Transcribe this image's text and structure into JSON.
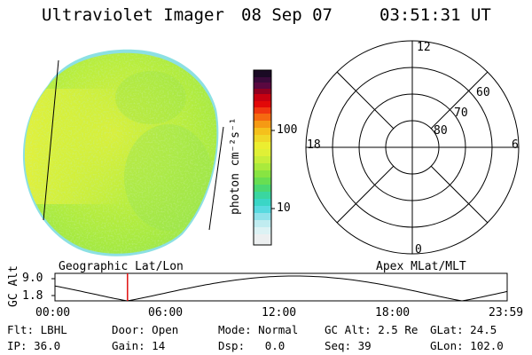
{
  "header": {
    "instrument": "Ultraviolet Imager",
    "date": "08 Sep 07",
    "time": "03:51:31 UT"
  },
  "colorbar": {
    "label": "photon cm⁻²s⁻¹",
    "ticks": [
      {
        "label": "100",
        "value": 100
      },
      {
        "label": "10",
        "value": 10
      }
    ],
    "scale": "log"
  },
  "polar_plot": {
    "clock_labels": [
      "12",
      "18",
      "6",
      "0"
    ],
    "lat_labels": [
      "60",
      "70",
      "80"
    ]
  },
  "timeline": {
    "left_label": "Geographic Lat/Lon",
    "right_label": "Apex MLat/MLT",
    "y_axis_label": "GC Alt",
    "y_ticks": [
      "9.0",
      "1.8"
    ],
    "x_ticks": [
      "00:00",
      "06:00",
      "12:00",
      "18:00",
      "23:59"
    ],
    "marker_time": "03:51"
  },
  "info": {
    "row1": {
      "flt_label": "Flt:",
      "flt_value": "LBHL",
      "door_label": "Door:",
      "door_value": "Open",
      "mode_label": "Mode:",
      "mode_value": "Normal",
      "gcalt_label": "GC Alt:",
      "gcalt_value": "2.5 Re",
      "glat_label": "GLat:",
      "glat_value": "24.5"
    },
    "row2": {
      "ip_label": "IP:",
      "ip_value": "36.0",
      "gain_label": "Gain:",
      "gain_value": "14",
      "dsp_label": "Dsp:",
      "dsp_value": "0.0",
      "seq_label": "Seq:",
      "seq_value": "39",
      "glon_label": "GLon:",
      "glon_value": "102.0"
    }
  },
  "colors": {
    "disk_main": "#b8ee3a",
    "disk_yellow": "#e6f23a",
    "disk_edge": "#6fd8e0",
    "marker": "#e01010"
  }
}
